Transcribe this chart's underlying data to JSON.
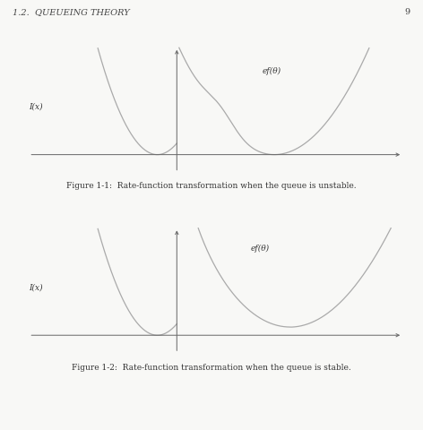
{
  "fig_width": 4.72,
  "fig_height": 4.8,
  "dpi": 100,
  "bg_color": "#f8f8f6",
  "curve_color": "#aaaaaa",
  "axis_color": "#666666",
  "text_color": "#333333",
  "header_text": "1.2.  QUEUEING THEORY",
  "page_num": "9",
  "fig1_caption": "Figure 1-1:  Rate-function transformation when the queue is unstable.",
  "fig2_caption": "Figure 1-2:  Rate-function transformation when the queue is stable.",
  "label_fx": "I(x)",
  "label_ef": "ef(θ)",
  "header_fontsize": 7.0,
  "caption_fontsize": 6.5,
  "label_fontsize": 6.5,
  "curve_lw": 0.9
}
